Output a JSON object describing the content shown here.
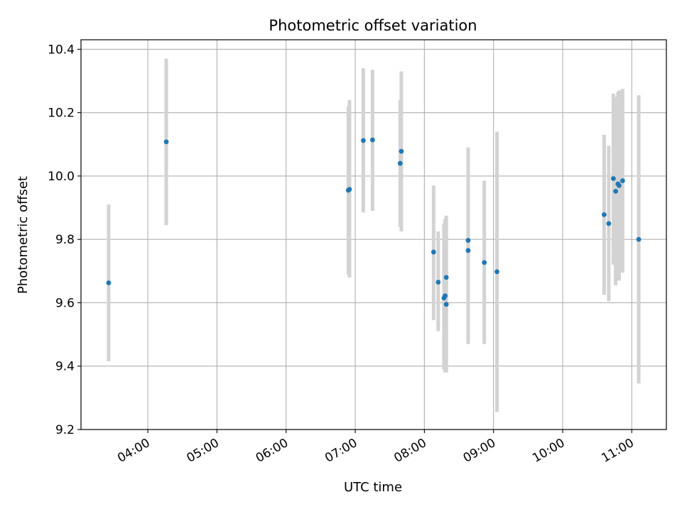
{
  "chart_data": {
    "type": "scatter",
    "title": "Photometric offset variation",
    "xlabel": "UTC time",
    "ylabel": "Photometric offset",
    "x_unit": "UTC time (HH:MM)",
    "xlim": [
      "03:02",
      "11:30"
    ],
    "ylim": [
      9.2,
      10.43
    ],
    "x_ticks": [
      "04:00",
      "05:00",
      "06:00",
      "07:00",
      "08:00",
      "09:00",
      "10:00",
      "11:00"
    ],
    "y_ticks": [
      "9.2",
      "9.4",
      "9.6",
      "9.8",
      "10.0",
      "10.2",
      "10.4"
    ],
    "grid": true,
    "point_color": "#1f77b4",
    "errorbar_color": "#d3d3d3",
    "points": [
      {
        "t": "03:26",
        "y": 9.663,
        "lo": 9.415,
        "hi": 9.91
      },
      {
        "t": "04:16",
        "y": 10.108,
        "lo": 9.845,
        "hi": 10.37
      },
      {
        "t": "06:54",
        "y": 9.955,
        "lo": 9.69,
        "hi": 10.22
      },
      {
        "t": "06:55",
        "y": 9.958,
        "lo": 9.68,
        "hi": 10.24
      },
      {
        "t": "07:07",
        "y": 10.112,
        "lo": 9.885,
        "hi": 10.34
      },
      {
        "t": "07:15",
        "y": 10.114,
        "lo": 9.89,
        "hi": 10.335
      },
      {
        "t": "07:39",
        "y": 10.04,
        "lo": 9.84,
        "hi": 10.24
      },
      {
        "t": "07:40",
        "y": 10.078,
        "lo": 9.825,
        "hi": 10.33
      },
      {
        "t": "08:08",
        "y": 9.76,
        "lo": 9.545,
        "hi": 9.97
      },
      {
        "t": "08:12",
        "y": 9.665,
        "lo": 9.51,
        "hi": 9.825
      },
      {
        "t": "08:17",
        "y": 9.615,
        "lo": 9.39,
        "hi": 9.85
      },
      {
        "t": "08:18",
        "y": 9.622,
        "lo": 9.38,
        "hi": 9.865
      },
      {
        "t": "08:19",
        "y": 9.595,
        "lo": 9.38,
        "hi": 9.81
      },
      {
        "t": "08:19",
        "y": 9.68,
        "lo": 9.485,
        "hi": 9.875
      },
      {
        "t": "08:38",
        "y": 9.797,
        "lo": 9.5,
        "hi": 10.09
      },
      {
        "t": "08:38",
        "y": 9.765,
        "lo": 9.47,
        "hi": 10.06
      },
      {
        "t": "08:52",
        "y": 9.727,
        "lo": 9.47,
        "hi": 9.985
      },
      {
        "t": "09:03",
        "y": 9.698,
        "lo": 9.255,
        "hi": 10.14
      },
      {
        "t": "10:36",
        "y": 9.878,
        "lo": 9.625,
        "hi": 10.13
      },
      {
        "t": "10:40",
        "y": 9.85,
        "lo": 9.605,
        "hi": 10.095
      },
      {
        "t": "10:44",
        "y": 9.992,
        "lo": 9.72,
        "hi": 10.26
      },
      {
        "t": "10:46",
        "y": 9.952,
        "lo": 9.655,
        "hi": 10.25
      },
      {
        "t": "10:48",
        "y": 9.975,
        "lo": 9.69,
        "hi": 10.265
      },
      {
        "t": "10:49",
        "y": 9.97,
        "lo": 9.67,
        "hi": 10.27
      },
      {
        "t": "10:52",
        "y": 9.985,
        "lo": 9.695,
        "hi": 10.275
      },
      {
        "t": "11:06",
        "y": 9.8,
        "lo": 9.345,
        "hi": 10.255
      }
    ]
  }
}
